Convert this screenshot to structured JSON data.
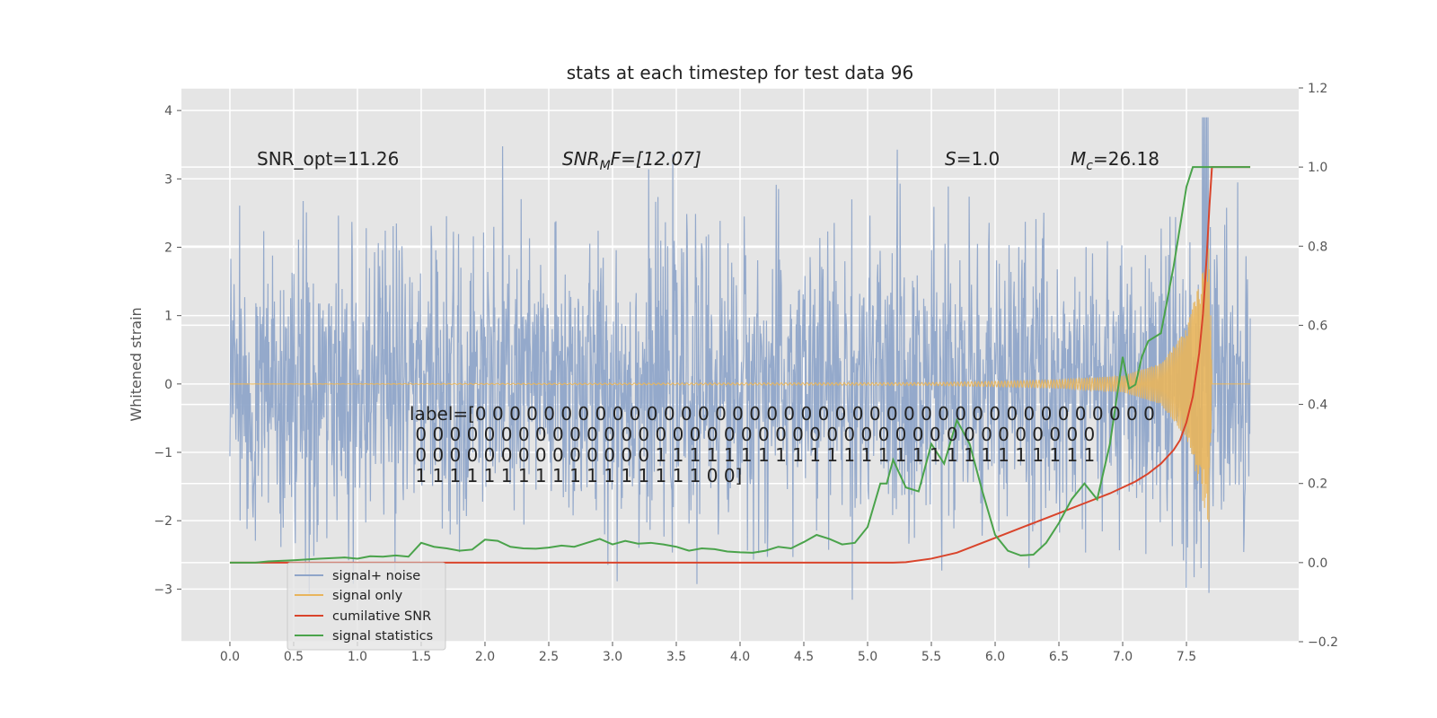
{
  "chart_data": {
    "type": "line",
    "title": "stats at each timestep for test data 96",
    "ylabel": "Whitened strain",
    "y2label": "",
    "xlim": [
      -0.38,
      8.38
    ],
    "ylim": [
      -3.77,
      4.33
    ],
    "y2lim": [
      -0.2,
      1.2
    ],
    "xticks": [
      "0.0",
      "0.5",
      "1.0",
      "1.5",
      "2.0",
      "2.5",
      "3.0",
      "3.5",
      "4.0",
      "4.5",
      "5.0",
      "5.5",
      "6.0",
      "6.5",
      "7.0",
      "7.5"
    ],
    "yticks": [
      -3,
      -2,
      -1,
      0,
      1,
      2,
      3,
      4
    ],
    "y2ticks": [
      -0.2,
      0.0,
      0.2,
      0.4,
      0.6,
      0.8,
      1.0,
      1.2
    ],
    "grid": true,
    "legend_position": "lower-left",
    "annotations": {
      "snr_opt": "SNR_opt=11.26",
      "snr_mf_sym": "SNR",
      "snr_mf_sub": "M",
      "snr_mf_rest": "F=[12.07]",
      "s_sym": "S",
      "s_rest": "=1.0",
      "mc_sym": "M",
      "mc_sub": "c",
      "mc_rest": "=26.18",
      "label_lines": [
        "label=[0 0 0 0 0 0 0 0 0 0 0 0 0 0 0 0 0 0 0 0 0 0 0 0 0 0 0 0 0 0 0 0 0 0 0 0 0 0 0 0",
        " 0 0 0 0 0 0 0 0 0 0 0 0 0 0 0 0 0 0 0 0 0 0 0 0 0 0 0 0 0 0 0 0 0 0 0 0 0 0 0 0",
        " 0 0 0 0 0 0 0 0 0 0 0 0 0 0 1 1 1 1 1 1 1 1 1 1 1 1 1 1 1 1 1 1 1 1 1 1 1 1 1 1",
        " 1 1 1 1 1 1 1 1 1 1 1 1 1 1 1 1 1 0 0]"
      ]
    },
    "series": [
      {
        "name": "signal+ noise",
        "axis": "left",
        "color": "#8fa5c9",
        "noise_sigma": 1.0,
        "x_range": [
          0.0,
          8.0
        ],
        "note_points": 2200
      },
      {
        "name": "signal only",
        "axis": "left",
        "color": "#e8b55c",
        "chirp_envelope": [
          [
            0.0,
            0.0
          ],
          [
            5.5,
            0.02
          ],
          [
            6.5,
            0.06
          ],
          [
            7.0,
            0.12
          ],
          [
            7.3,
            0.3
          ],
          [
            7.5,
            0.8
          ],
          [
            7.6,
            1.5
          ],
          [
            7.68,
            2.1
          ],
          [
            7.7,
            0.0
          ],
          [
            8.0,
            0.0
          ]
        ]
      },
      {
        "name": "cumilative SNR",
        "axis": "right",
        "color": "#d9442b",
        "x": [
          0.0,
          0.5,
          1.0,
          1.5,
          2.0,
          2.5,
          3.0,
          3.5,
          4.0,
          4.5,
          5.0,
          5.2,
          5.3,
          5.5,
          5.7,
          5.9,
          6.1,
          6.3,
          6.5,
          6.7,
          6.9,
          7.0,
          7.1,
          7.2,
          7.3,
          7.4,
          7.45,
          7.5,
          7.55,
          7.6,
          7.63,
          7.66,
          7.68,
          7.7,
          8.0
        ],
        "y": [
          0.0,
          0.0,
          0.0,
          0.0,
          0.0,
          0.0,
          0.0,
          0.0,
          0.0,
          0.0,
          0.0,
          0.0,
          0.001,
          0.01,
          0.025,
          0.05,
          0.075,
          0.1,
          0.125,
          0.15,
          0.175,
          0.19,
          0.205,
          0.225,
          0.25,
          0.285,
          0.31,
          0.355,
          0.42,
          0.53,
          0.63,
          0.78,
          0.9,
          1.0,
          1.0
        ]
      },
      {
        "name": "signal statistics",
        "axis": "right",
        "color": "#4aa34b",
        "x": [
          0.0,
          0.2,
          0.3,
          0.5,
          0.7,
          0.9,
          1.0,
          1.1,
          1.2,
          1.3,
          1.4,
          1.5,
          1.6,
          1.7,
          1.8,
          1.9,
          2.0,
          2.1,
          2.2,
          2.3,
          2.4,
          2.5,
          2.6,
          2.7,
          2.8,
          2.9,
          3.0,
          3.1,
          3.2,
          3.3,
          3.4,
          3.5,
          3.6,
          3.7,
          3.8,
          3.9,
          4.0,
          4.1,
          4.2,
          4.3,
          4.4,
          4.5,
          4.6,
          4.7,
          4.8,
          4.9,
          5.0,
          5.1,
          5.15,
          5.2,
          5.3,
          5.4,
          5.5,
          5.6,
          5.7,
          5.8,
          5.9,
          6.0,
          6.1,
          6.2,
          6.3,
          6.4,
          6.5,
          6.6,
          6.7,
          6.8,
          6.9,
          7.0,
          7.05,
          7.1,
          7.15,
          7.2,
          7.3,
          7.4,
          7.5,
          7.55,
          7.6,
          7.7,
          8.0
        ],
        "y": [
          0.0,
          0.0,
          0.003,
          0.006,
          0.01,
          0.013,
          0.01,
          0.016,
          0.015,
          0.018,
          0.015,
          0.05,
          0.04,
          0.036,
          0.03,
          0.033,
          0.058,
          0.055,
          0.04,
          0.036,
          0.035,
          0.038,
          0.043,
          0.04,
          0.05,
          0.06,
          0.046,
          0.055,
          0.048,
          0.05,
          0.046,
          0.04,
          0.03,
          0.036,
          0.034,
          0.028,
          0.026,
          0.025,
          0.03,
          0.04,
          0.036,
          0.052,
          0.07,
          0.06,
          0.046,
          0.05,
          0.09,
          0.2,
          0.2,
          0.26,
          0.19,
          0.18,
          0.3,
          0.25,
          0.36,
          0.3,
          0.18,
          0.07,
          0.03,
          0.018,
          0.02,
          0.05,
          0.1,
          0.16,
          0.2,
          0.16,
          0.3,
          0.52,
          0.44,
          0.45,
          0.52,
          0.56,
          0.58,
          0.75,
          0.95,
          1.0,
          1.0,
          1.0,
          1.0
        ]
      }
    ]
  }
}
